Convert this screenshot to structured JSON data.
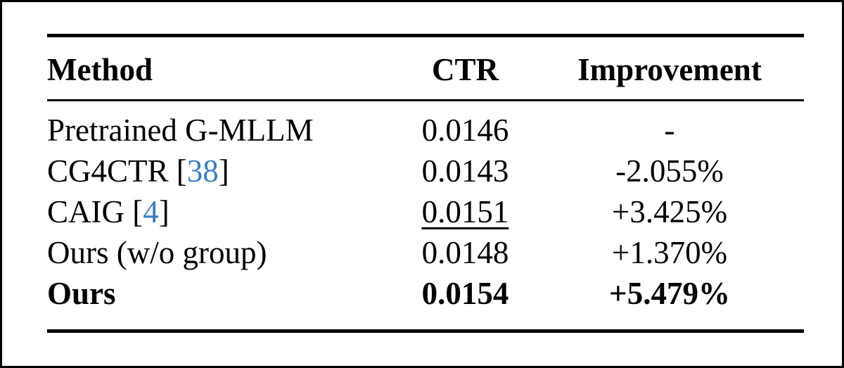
{
  "table": {
    "citation_color": "#3d7dc1",
    "citation_brackets": {
      "open": "[",
      "close": "]"
    },
    "columns": [
      {
        "label": "Method"
      },
      {
        "label": "CTR"
      },
      {
        "label": "Improvement"
      }
    ],
    "rows": [
      {
        "method": "Pretrained G-MLLM",
        "citation": "",
        "ctr": "0.0146",
        "improvement": "-",
        "bold": false,
        "ctr_underline": false
      },
      {
        "method": "CG4CTR",
        "citation": "38",
        "ctr": "0.0143",
        "improvement": "-2.055%",
        "bold": false,
        "ctr_underline": false
      },
      {
        "method": "CAIG",
        "citation": "4",
        "ctr": "0.0151",
        "improvement": "+3.425%",
        "bold": false,
        "ctr_underline": true
      },
      {
        "method": "Ours (w/o group)",
        "citation": "",
        "ctr": "0.0148",
        "improvement": "+1.370%",
        "bold": false,
        "ctr_underline": false
      },
      {
        "method": "Ours",
        "citation": "",
        "ctr": "0.0154",
        "improvement": "+5.479%",
        "bold": true,
        "ctr_underline": false
      }
    ]
  }
}
